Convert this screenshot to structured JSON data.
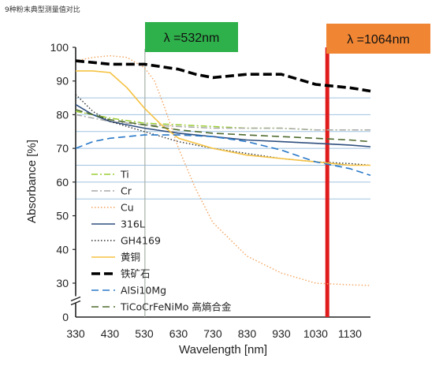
{
  "caption": "9种粉末典型测量值对比",
  "chart_data": {
    "type": "line",
    "xlabel": "Wavelength [nm]",
    "ylabel": "Absorbance [%]",
    "xlim": [
      330,
      1190
    ],
    "ylim": [
      0,
      100
    ],
    "y_axis_break": [
      0,
      25
    ],
    "x_ticks": [
      "330",
      "430",
      "530",
      "630",
      "730",
      "830",
      "930",
      "1030",
      "1130"
    ],
    "y_ticks": [
      "0",
      "30",
      "40",
      "50",
      "60",
      "70",
      "80",
      "90",
      "100"
    ],
    "grid": "horizontal blue lines at 55, 60, 65, 70, 75, 80, 85",
    "legend_position": "left-lower",
    "wavelength_markers": [
      {
        "label": "λ =532nm",
        "x": 532,
        "box_color": "#2eb04a",
        "line_color": "#a8b0a8"
      },
      {
        "label": "λ =1064nm",
        "x": 1064,
        "box_color": "#f08533",
        "line_color": "#e01b1b"
      }
    ],
    "series": [
      {
        "name": "Ti",
        "color": "#9acd32",
        "style": "dashdot",
        "x": [
          330,
          430,
          530,
          630,
          730,
          830,
          930,
          1030,
          1130,
          1190
        ],
        "y": [
          81,
          79,
          77.5,
          77,
          76.5,
          76,
          76,
          75.5,
          75.5,
          75.5
        ]
      },
      {
        "name": "Cr",
        "color": "#a9a9a9",
        "style": "dashdot",
        "x": [
          330,
          430,
          530,
          630,
          730,
          830,
          930,
          1030,
          1130,
          1190
        ],
        "y": [
          80,
          78,
          77,
          76.5,
          76,
          76,
          76,
          75.5,
          75.5,
          75.5
        ]
      },
      {
        "name": "Cu",
        "color": "#f4a460",
        "style": "dotted",
        "x": [
          330,
          380,
          430,
          480,
          530,
          560,
          590,
          630,
          680,
          730,
          830,
          930,
          1030,
          1130,
          1190
        ],
        "y": [
          96,
          97,
          97.5,
          97,
          94,
          90,
          82,
          70,
          58,
          48,
          38,
          33,
          30,
          28.5,
          28
        ]
      },
      {
        "name": "316L",
        "color": "#2f4f7f",
        "style": "solid",
        "x": [
          330,
          380,
          430,
          530,
          630,
          730,
          830,
          930,
          1030,
          1130,
          1190
        ],
        "y": [
          83,
          80,
          78,
          76,
          74.5,
          73.5,
          72.5,
          72,
          71.5,
          71,
          70.5
        ]
      },
      {
        "name": "GH4169",
        "color": "#303030",
        "style": "dotted",
        "x": [
          330,
          380,
          430,
          530,
          630,
          730,
          830,
          930,
          1030,
          1130,
          1190
        ],
        "y": [
          86,
          81,
          78,
          75,
          72,
          70,
          68.5,
          67,
          66,
          65.5,
          65
        ]
      },
      {
        "name": "黄铜",
        "color": "#f5c242",
        "style": "solid",
        "x": [
          330,
          380,
          430,
          480,
          530,
          580,
          630,
          730,
          830,
          930,
          1030,
          1130,
          1190
        ],
        "y": [
          93,
          93,
          92.5,
          88,
          82,
          77,
          73,
          70,
          68,
          67,
          66,
          65,
          65
        ]
      },
      {
        "name": "铁矿石",
        "color": "#000000",
        "style": "dashed-heavy",
        "x": [
          330,
          380,
          430,
          530,
          630,
          680,
          730,
          830,
          930,
          1030,
          1130,
          1190
        ],
        "y": [
          96,
          95.5,
          95,
          95,
          93.5,
          92,
          91,
          92,
          92,
          89,
          88,
          87
        ]
      },
      {
        "name": "AlSi10Mg",
        "color": "#2878c8",
        "style": "dashed",
        "x": [
          330,
          380,
          430,
          530,
          630,
          730,
          830,
          930,
          1030,
          1130,
          1190
        ],
        "y": [
          70,
          72,
          73,
          74,
          74,
          73.5,
          72,
          69.5,
          66,
          64,
          62
        ]
      },
      {
        "name": "TiCoCrFeNiMo 高熵合金",
        "color": "#4f6b2f",
        "style": "dashed",
        "x": [
          330,
          380,
          430,
          530,
          630,
          730,
          830,
          930,
          1030,
          1130,
          1190
        ],
        "y": [
          81.5,
          80,
          78.5,
          77,
          75.5,
          74.5,
          74,
          73.5,
          73,
          72.5,
          72
        ]
      }
    ]
  }
}
